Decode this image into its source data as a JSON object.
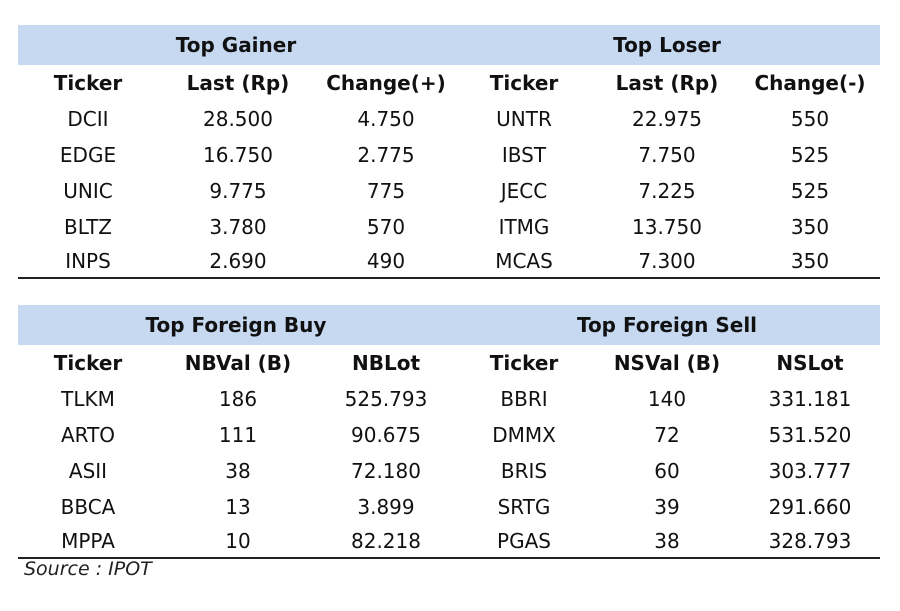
{
  "movers": {
    "gainer_title": "Top Gainer",
    "loser_title": "Top Loser",
    "headers": [
      "Ticker",
      "Last (Rp)",
      "Change(+)",
      "Ticker",
      "Last (Rp)",
      "Change(-)"
    ],
    "rows": [
      [
        "DCII",
        "28.500",
        "4.750",
        "UNTR",
        "22.975",
        "550"
      ],
      [
        "EDGE",
        "16.750",
        "2.775",
        "IBST",
        "7.750",
        "525"
      ],
      [
        "UNIC",
        "9.775",
        "775",
        "JECC",
        "7.225",
        "525"
      ],
      [
        "BLTZ",
        "3.780",
        "570",
        "ITMG",
        "13.750",
        "350"
      ],
      [
        "INPS",
        "2.690",
        "490",
        "MCAS",
        "7.300",
        "350"
      ]
    ]
  },
  "foreign": {
    "buy_title": "Top Foreign Buy",
    "sell_title": "Top Foreign Sell",
    "headers": [
      "Ticker",
      "NBVal (B)",
      "NBLot",
      "Ticker",
      "NSVal (B)",
      "NSLot"
    ],
    "rows": [
      [
        "TLKM",
        "186",
        "525.793",
        "BBRI",
        "140",
        "331.181"
      ],
      [
        "ARTO",
        "111",
        "90.675",
        "DMMX",
        "72",
        "531.520"
      ],
      [
        "ASII",
        "38",
        "72.180",
        "BRIS",
        "60",
        "303.777"
      ],
      [
        "BBCA",
        "13",
        "3.899",
        "SRTG",
        "39",
        "291.660"
      ],
      [
        "MPPA",
        "10",
        "82.218",
        "PGAS",
        "38",
        "328.793"
      ]
    ]
  },
  "source": "Source : IPOT"
}
